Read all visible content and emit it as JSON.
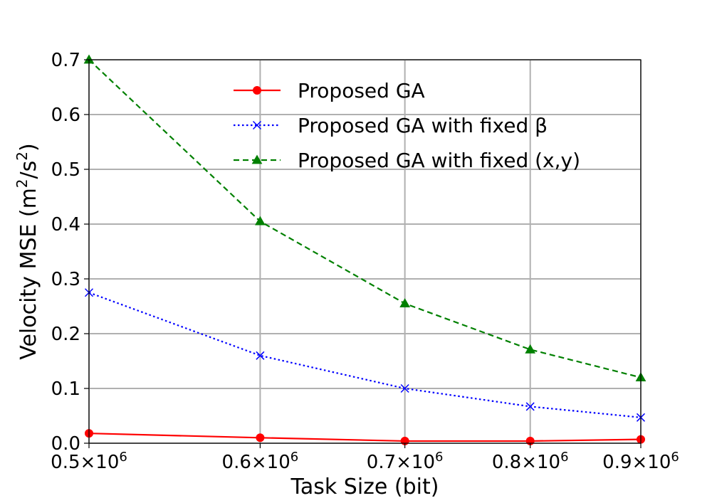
{
  "chart_data": {
    "type": "line",
    "xlabel": "Task Size (bit)",
    "ylabel_parts": {
      "prefix": "Velocity MSE (m",
      "sup1": "2",
      "mid": "/s",
      "sup2": "2",
      "suffix": ")"
    },
    "x_tick_labels": [
      {
        "mantissa": "0.5",
        "times": "×",
        "base": "10",
        "exp": "6"
      },
      {
        "mantissa": "0.6",
        "times": "×",
        "base": "10",
        "exp": "6"
      },
      {
        "mantissa": "0.7",
        "times": "×",
        "base": "10",
        "exp": "6"
      },
      {
        "mantissa": "0.8",
        "times": "×",
        "base": "10",
        "exp": "6"
      },
      {
        "mantissa": "0.9",
        "times": "×",
        "base": "10",
        "exp": "6"
      }
    ],
    "x_ticks": [
      500000,
      600000,
      700000,
      800000,
      900000
    ],
    "y_tick_labels": [
      "0.0",
      "0.1",
      "0.2",
      "0.3",
      "0.4",
      "0.5",
      "0.6",
      "0.7"
    ],
    "y_ticks": [
      0.0,
      0.1,
      0.2,
      0.3,
      0.4,
      0.5,
      0.6,
      0.7
    ],
    "xlim": [
      500000,
      900000
    ],
    "ylim": [
      0.0,
      0.7
    ],
    "x_scale": "log",
    "grid": true,
    "legend_position": "upper-center",
    "x": [
      500000,
      600000,
      700000,
      800000,
      900000
    ],
    "series": [
      {
        "name": "Proposed GA",
        "values": [
          0.018,
          0.01,
          0.004,
          0.004,
          0.007
        ],
        "color": "#ff0000",
        "style": "solid",
        "marker": "circle"
      },
      {
        "name": "Proposed GA with fixed β",
        "values": [
          0.275,
          0.16,
          0.1,
          0.067,
          0.047
        ],
        "color": "#0000ff",
        "style": "dotted",
        "marker": "x"
      },
      {
        "name": "Proposed GA with fixed (x,y)",
        "values": [
          0.7,
          0.405,
          0.255,
          0.171,
          0.12
        ],
        "color": "#008000",
        "style": "dashed",
        "marker": "triangle"
      }
    ]
  }
}
